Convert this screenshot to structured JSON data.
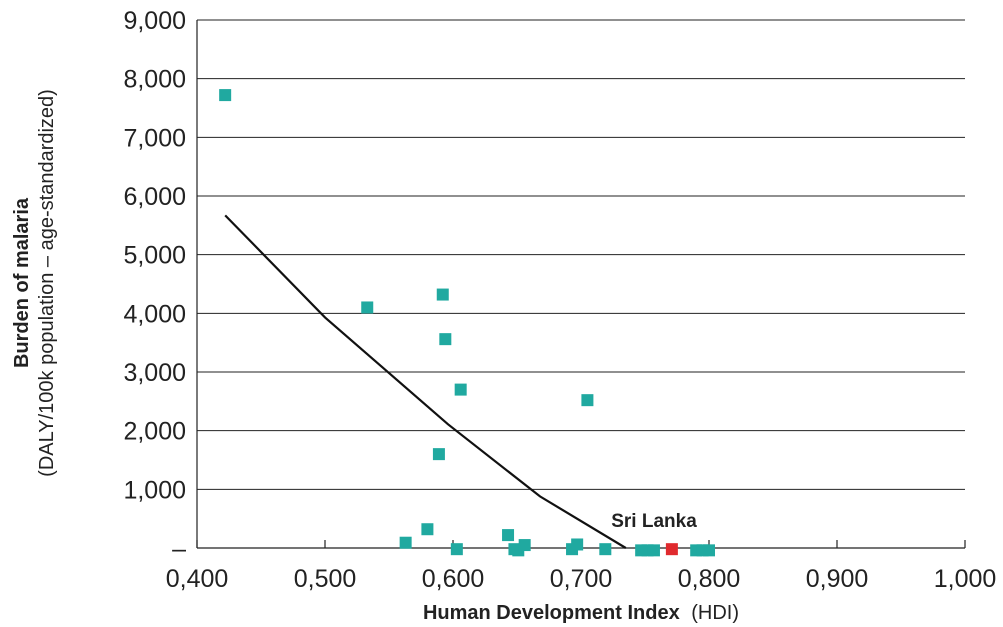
{
  "chart_data": {
    "type": "scatter",
    "xlabel_bold": "Human Development Index",
    "xlabel_rest": "(HDI)",
    "ylabel_bold": "Burden of malaria",
    "ylabel_sub": "(DALY/100k population – age-standardized)",
    "xlim": [
      0.4,
      1.0
    ],
    "ylim": [
      0,
      9000
    ],
    "x_ticks": [
      {
        "value": 0.4,
        "label": "0,400"
      },
      {
        "value": 0.5,
        "label": "0,500"
      },
      {
        "value": 0.6,
        "label": "0,600"
      },
      {
        "value": 0.7,
        "label": "0,700"
      },
      {
        "value": 0.8,
        "label": "0,800"
      },
      {
        "value": 0.9,
        "label": "0,900"
      },
      {
        "value": 1.0,
        "label": "1,000"
      }
    ],
    "y_ticks": [
      {
        "value": 0,
        "label": "–"
      },
      {
        "value": 1000,
        "label": "1,000"
      },
      {
        "value": 2000,
        "label": "2,000"
      },
      {
        "value": 3000,
        "label": "3,000"
      },
      {
        "value": 4000,
        "label": "4,000"
      },
      {
        "value": 5000,
        "label": "5,000"
      },
      {
        "value": 6000,
        "label": "6,000"
      },
      {
        "value": 7000,
        "label": "7,000"
      },
      {
        "value": 8000,
        "label": "8,000"
      },
      {
        "value": 9000,
        "label": "9,000"
      }
    ],
    "grid": true,
    "point_color": "#20a9a0",
    "highlight_color": "#e02a2e",
    "trend_color": "#111111",
    "points": [
      {
        "x": 0.422,
        "y": 7720
      },
      {
        "x": 0.533,
        "y": 4100
      },
      {
        "x": 0.592,
        "y": 4320
      },
      {
        "x": 0.594,
        "y": 3560
      },
      {
        "x": 0.606,
        "y": 2700
      },
      {
        "x": 0.589,
        "y": 1600
      },
      {
        "x": 0.705,
        "y": 2520
      },
      {
        "x": 0.563,
        "y": 90
      },
      {
        "x": 0.58,
        "y": 320
      },
      {
        "x": 0.603,
        "y": -20
      },
      {
        "x": 0.643,
        "y": 220
      },
      {
        "x": 0.648,
        "y": -20
      },
      {
        "x": 0.651,
        "y": -40
      },
      {
        "x": 0.656,
        "y": 50
      },
      {
        "x": 0.693,
        "y": -20
      },
      {
        "x": 0.697,
        "y": 60
      },
      {
        "x": 0.719,
        "y": -20
      },
      {
        "x": 0.747,
        "y": -40
      },
      {
        "x": 0.752,
        "y": -40
      },
      {
        "x": 0.757,
        "y": -40
      },
      {
        "x": 0.79,
        "y": -40
      },
      {
        "x": 0.795,
        "y": -40
      },
      {
        "x": 0.8,
        "y": -40
      }
    ],
    "highlight_point": {
      "x": 0.771,
      "y": -20,
      "label": "Sri Lanka"
    },
    "trend_line": [
      {
        "x": 0.422,
        "y": 5670
      },
      {
        "x": 0.5,
        "y": 3930
      },
      {
        "x": 0.596,
        "y": 2110
      },
      {
        "x": 0.668,
        "y": 880
      },
      {
        "x": 0.735,
        "y": 0
      }
    ]
  }
}
